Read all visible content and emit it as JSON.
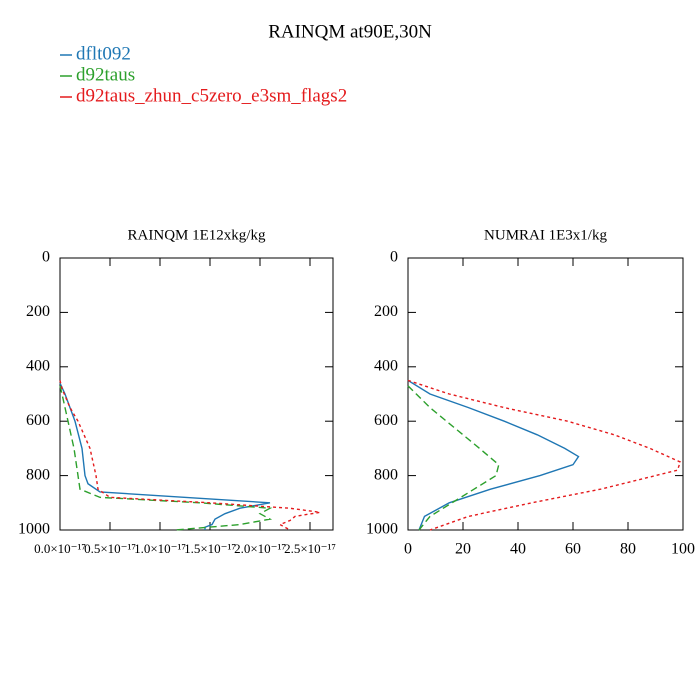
{
  "title": "RAINQM at90E,30N",
  "chart_data": [
    {
      "type": "line",
      "title": "RAINQM  1E12xkg/kg",
      "y_inverted": true,
      "xlim": [
        0,
        2.73e-17
      ],
      "ylim": [
        0,
        1000
      ],
      "xticks": [
        {
          "value": 0,
          "label": "0.0×10⁻¹⁷"
        },
        {
          "value": 5e-18,
          "label": "0.5×10⁻¹⁷"
        },
        {
          "value": 1e-17,
          "label": "1.0×10⁻¹⁷"
        },
        {
          "value": 1.5e-17,
          "label": "1.5×10⁻¹⁷"
        },
        {
          "value": 2e-17,
          "label": "2.0×10⁻¹⁷"
        },
        {
          "value": 2.5e-17,
          "label": "2.5×10⁻¹⁷"
        }
      ],
      "yticks": [
        0,
        200,
        400,
        600,
        800,
        1000
      ],
      "series": [
        {
          "name": "dflt092",
          "color": "#1f77b4",
          "dash": "solid",
          "x": [
            0,
            5e-19,
            1.5e-18,
            2.2e-18,
            2.5e-18,
            2.8e-18,
            4e-18,
            2.1e-17,
            1.8e-17,
            1.65e-17,
            1.55e-17,
            1.52e-17,
            1.45e-17,
            1.45e-17
          ],
          "y": [
            460,
            500,
            600,
            700,
            800,
            830,
            860,
            900,
            920,
            940,
            960,
            980,
            990,
            1000
          ]
        },
        {
          "name": "d92taus",
          "color": "#2ca02c",
          "dash": "dashed",
          "x": [
            0,
            2e-19,
            8e-19,
            1.4e-18,
            1.8e-18,
            2e-18,
            4e-18,
            1.4e-17,
            2.1e-17,
            2e-17,
            2.1e-17,
            1.8e-17,
            1.15e-17
          ],
          "y": [
            470,
            500,
            600,
            700,
            800,
            850,
            880,
            900,
            920,
            940,
            960,
            980,
            1000
          ]
        },
        {
          "name": "d92taus_zhun_c5zero_e3sm_flags2",
          "color": "#e41a1c",
          "dash": "dotted",
          "x": [
            0,
            2e-19,
            1e-18,
            1.8e-18,
            3e-18,
            3.6e-18,
            3.8e-18,
            5e-18,
            1.5e-17,
            2.3e-17,
            2.6e-17,
            2.35e-17,
            2.3e-17,
            2.2e-17,
            2.3e-17
          ],
          "y": [
            450,
            480,
            550,
            600,
            700,
            800,
            850,
            880,
            900,
            920,
            935,
            950,
            965,
            980,
            1000
          ]
        }
      ]
    },
    {
      "type": "line",
      "title": "NUMRAI  1E3x1/kg",
      "y_inverted": true,
      "xlim": [
        0,
        100
      ],
      "ylim": [
        0,
        1000
      ],
      "xticks": [
        0,
        20,
        40,
        60,
        80,
        100
      ],
      "yticks": [
        0,
        200,
        400,
        600,
        800,
        1000
      ],
      "series": [
        {
          "color": "#1f77b4",
          "dash": "solid",
          "x": [
            0,
            8,
            22,
            35,
            47,
            57,
            62,
            60,
            48,
            30,
            15,
            6,
            4
          ],
          "y": [
            450,
            500,
            550,
            600,
            650,
            700,
            730,
            760,
            800,
            850,
            900,
            950,
            1000
          ]
        },
        {
          "color": "#2ca02c",
          "dash": "dashed",
          "x": [
            0,
            3,
            8,
            14,
            26,
            33,
            32,
            24,
            16,
            8,
            4
          ],
          "y": [
            470,
            500,
            550,
            600,
            700,
            760,
            800,
            850,
            900,
            950,
            1000
          ]
        },
        {
          "color": "#e41a1c",
          "dash": "dotted",
          "x": [
            0,
            15,
            35,
            58,
            75,
            88,
            99,
            98,
            70,
            45,
            22,
            8
          ],
          "y": [
            450,
            500,
            550,
            600,
            650,
            700,
            750,
            780,
            850,
            900,
            950,
            1000
          ]
        }
      ]
    }
  ]
}
